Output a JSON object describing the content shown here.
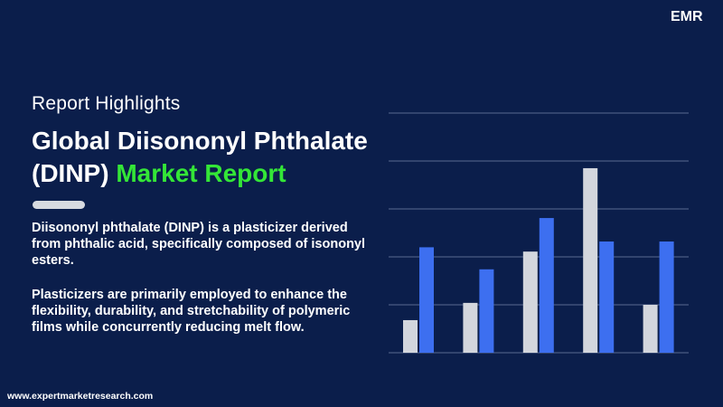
{
  "logo": {
    "text": "EMR"
  },
  "header": {
    "kicker": "Report Highlights",
    "title_line1": "Global Diisononyl Phthalate",
    "title_line2": "(DINP)",
    "title_highlight": "Market Report"
  },
  "body": {
    "paragraphs": [
      "Diisononyl phthalate (DINP) is a plasticizer derived from phthalic acid, specifically composed of isononyl esters.",
      "Plasticizers are primarily employed to enhance the flexibility, durability, and stretchability of polymeric films while concurrently reducing melt flow."
    ]
  },
  "footer": {
    "website": "www.expertmarketresearch.com"
  },
  "chart_data": {
    "type": "bar",
    "categories": [
      null,
      null,
      null,
      null,
      null
    ],
    "series": [
      {
        "color": "#d3d6dd",
        "values": [
          0.68,
          1.04,
          2.11,
          3.85,
          1.0
        ]
      },
      {
        "color": "#3d6ff0",
        "values": [
          2.2,
          1.74,
          2.81,
          2.32,
          2.32
        ]
      }
    ],
    "ylim": [
      0,
      5
    ],
    "yticks": [
      0,
      1,
      2,
      3,
      4,
      5
    ],
    "grid": true
  }
}
